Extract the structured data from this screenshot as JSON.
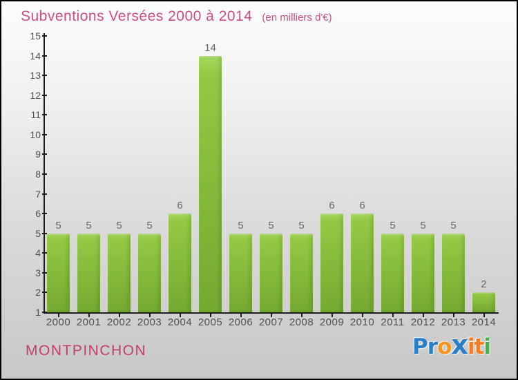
{
  "header": {
    "title": "Subventions Versées 2000 à 2014",
    "subtitle": "(en milliers d'€)",
    "title_color": "#cf4e79"
  },
  "chart_data": {
    "type": "bar",
    "title": "Subventions Versées 2000 à 2014",
    "subtitle": "(en milliers d'€)",
    "categories": [
      "2000",
      "2001",
      "2002",
      "2003",
      "2004",
      "2005",
      "2006",
      "2007",
      "2008",
      "2009",
      "2010",
      "2011",
      "2012",
      "2013",
      "2014"
    ],
    "values": [
      5,
      5,
      5,
      5,
      6,
      14,
      5,
      5,
      5,
      6,
      6,
      5,
      5,
      5,
      2
    ],
    "xlabel": "",
    "ylabel": "",
    "ylim": [
      1,
      15
    ],
    "y_ticks": [
      1,
      2,
      3,
      4,
      5,
      6,
      7,
      8,
      9,
      10,
      11,
      12,
      13,
      14,
      15
    ],
    "grid": false,
    "legend": null,
    "bar_color_highlight": "#a5d75f",
    "bar_color_top": "#93c944",
    "bar_color_bottom": "#74a930",
    "value_label_color": "#666666",
    "tick_label_color": "#4f4f4f",
    "axis_color": "#1c1c1c"
  },
  "footer": {
    "municipality": "MONTPINCHON",
    "municipality_color": "#c23e70",
    "logo": {
      "name": "Proxiti",
      "letters": [
        {
          "char": "P",
          "color": "#2a7fc9",
          "big": false
        },
        {
          "char": "r",
          "color": "#2a7fc9",
          "big": false
        },
        {
          "char": "o",
          "color": "#f7941d",
          "big": false
        },
        {
          "char": "x",
          "color": "#2a7fc9",
          "big": true
        },
        {
          "char": "i",
          "color": "#f47b20",
          "big": false
        },
        {
          "char": "t",
          "color": "#f47b20",
          "big": false
        },
        {
          "char": "i",
          "color": "#3eb549",
          "big": false
        }
      ]
    }
  }
}
